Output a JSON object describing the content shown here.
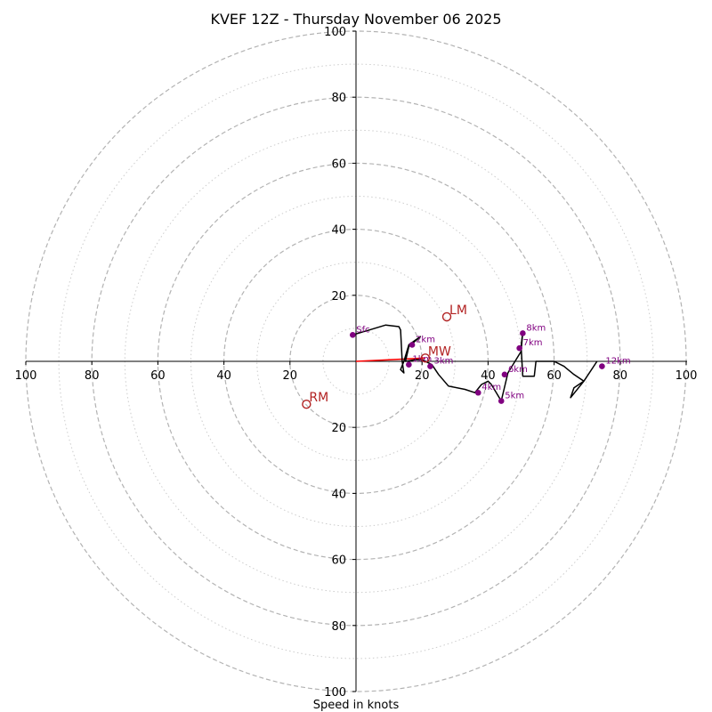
{
  "chart_data": {
    "type": "line",
    "subtype": "hodograph",
    "title": "KVEF 12Z - Thursday November 06 2025",
    "xlabel": "Speed in knots",
    "ylabel": "",
    "xlim": [
      -100,
      100
    ],
    "ylim": [
      -100,
      100
    ],
    "units": "knots",
    "rings": {
      "major": [
        20,
        40,
        60,
        80,
        100
      ],
      "minor": [
        10,
        30,
        50,
        70,
        90
      ]
    },
    "x_ticks": [
      {
        "value": -100,
        "label": "100"
      },
      {
        "value": -80,
        "label": "80"
      },
      {
        "value": -60,
        "label": "60"
      },
      {
        "value": -40,
        "label": "40"
      },
      {
        "value": -20,
        "label": "20"
      },
      {
        "value": 20,
        "label": "20"
      },
      {
        "value": 40,
        "label": "40"
      },
      {
        "value": 60,
        "label": "60"
      },
      {
        "value": 80,
        "label": "80"
      },
      {
        "value": 100,
        "label": "100"
      }
    ],
    "y_ticks": [
      {
        "value": 100,
        "label": "100"
      },
      {
        "value": 80,
        "label": "80"
      },
      {
        "value": 60,
        "label": "60"
      },
      {
        "value": 40,
        "label": "40"
      },
      {
        "value": 20,
        "label": "20"
      },
      {
        "value": -20,
        "label": "20"
      },
      {
        "value": -40,
        "label": "40"
      },
      {
        "value": -60,
        "label": "60"
      },
      {
        "value": -80,
        "label": "80"
      },
      {
        "value": -100,
        "label": "100"
      }
    ],
    "wind_profile": {
      "u": [
        -1,
        4,
        9,
        13,
        13.5,
        14,
        14.5,
        13.5,
        14.5,
        16,
        19.5,
        16,
        15,
        18,
        20,
        23,
        25,
        28,
        33,
        36,
        38,
        40,
        41,
        44,
        46,
        50,
        50.5,
        50,
        50.5,
        54,
        54.5,
        60,
        63,
        66,
        69,
        66,
        65,
        69,
        73
      ],
      "v": [
        8,
        9.5,
        11,
        10.5,
        9.5,
        0,
        -3.5,
        -2.5,
        0,
        5,
        7.5,
        4.5,
        0,
        0.5,
        0.5,
        -1,
        -4,
        -7.5,
        -8.5,
        -9.5,
        -7,
        -6,
        -7,
        -12,
        -3.5,
        3,
        9,
        4.5,
        -4.5,
        -4.5,
        0,
        0,
        -1.5,
        -4,
        -6,
        -8,
        -11,
        -6,
        0
      ]
    },
    "height_markers": [
      {
        "label": "Sfc",
        "u": -1,
        "v": 8
      },
      {
        "label": "1km",
        "u": 16,
        "v": -1
      },
      {
        "label": "2km",
        "u": 17,
        "v": 5
      },
      {
        "label": "3km",
        "u": 22.5,
        "v": -1.5
      },
      {
        "label": "4km",
        "u": 37,
        "v": -9.5
      },
      {
        "label": "5km",
        "u": 44,
        "v": -12
      },
      {
        "label": "6km",
        "u": 45,
        "v": -4
      },
      {
        "label": "7km",
        "u": 49.5,
        "v": 4
      },
      {
        "label": "8km",
        "u": 50.5,
        "v": 8.5
      },
      {
        "label": "12km",
        "u": 74.5,
        "v": -1.5
      }
    ],
    "motion_vectors": [
      {
        "label": "LM",
        "u": 27.5,
        "v": 13.5
      },
      {
        "label": "RM",
        "u": -15,
        "v": -13
      },
      {
        "label": "MW",
        "u": 21,
        "v": 1
      }
    ],
    "mean_wind_line": {
      "u": 21,
      "v": 1
    },
    "colors": {
      "profile": "#000000",
      "markers": "#800080",
      "motion": "#b22222",
      "mean_wind_line": "#ff0000",
      "rings": "#b3b3b3",
      "axes": "#000000"
    }
  }
}
